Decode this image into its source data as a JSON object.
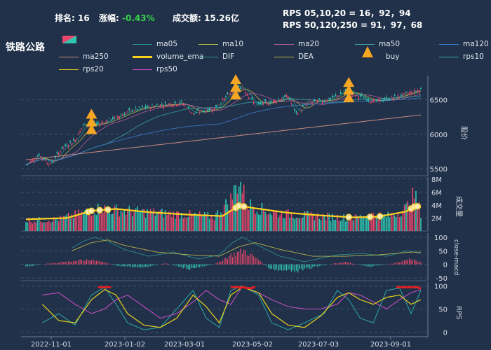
{
  "header": {
    "rank_label": "排名:",
    "rank_value": "16",
    "change_label": "涨幅:",
    "change_value": "-0.43%",
    "turnover_label": "成交额:",
    "turnover_value": "15.26亿",
    "rps_short": "RPS 05,10,20 = 16，92，94",
    "rps_long": "RPS 50,120,250 = 91，97，68"
  },
  "sector_name": "铁路公路",
  "legend": [
    {
      "label": "ma05",
      "color": "#2a8f8a"
    },
    {
      "label": "ma10",
      "color": "#b7b24a"
    },
    {
      "label": "ma20",
      "color": "#b05a9c"
    },
    {
      "label": "ma50",
      "color": "#3aa0a0"
    },
    {
      "label": "ma120",
      "color": "#3a7cc9"
    },
    {
      "label": "ma250",
      "color": "#c98a80"
    },
    {
      "label": "volume_ema",
      "color": "#ffd21f"
    },
    {
      "label": "DIF",
      "color": "#2a8f8a"
    },
    {
      "label": "DEA",
      "color": "#b7b24a"
    },
    {
      "label": "buy",
      "color": "#f5a623"
    },
    {
      "label": "rps10",
      "color": "#2aa8a8"
    },
    {
      "label": "rps20",
      "color": "#e8d21c"
    },
    {
      "label": "rps50",
      "color": "#d050c8"
    }
  ],
  "colors": {
    "up": "#e8476a",
    "down": "#2fc7b0",
    "bg": "#213149",
    "grid": "#4a5a70"
  },
  "chart_data": [
    {
      "type": "candlestick",
      "ylabel": "股价",
      "yticks": [
        5500,
        6000,
        6500
      ],
      "ylim": [
        5400,
        6850
      ],
      "series": [
        {
          "name": "ma05"
        },
        {
          "name": "ma10"
        },
        {
          "name": "ma20"
        },
        {
          "name": "ma50"
        },
        {
          "name": "ma120"
        },
        {
          "name": "ma250"
        }
      ],
      "close_keypoints": [
        [
          0,
          5560
        ],
        [
          8,
          5700
        ],
        [
          15,
          5560
        ],
        [
          22,
          5800
        ],
        [
          30,
          5920
        ],
        [
          35,
          6130
        ],
        [
          45,
          6150
        ],
        [
          55,
          6250
        ],
        [
          65,
          6350
        ],
        [
          80,
          6420
        ],
        [
          95,
          6460
        ],
        [
          102,
          6300
        ],
        [
          115,
          6380
        ],
        [
          125,
          6600
        ],
        [
          132,
          6700
        ],
        [
          140,
          6420
        ],
        [
          150,
          6470
        ],
        [
          160,
          6550
        ],
        [
          165,
          6300
        ],
        [
          172,
          6460
        ],
        [
          185,
          6500
        ],
        [
          195,
          6620
        ],
        [
          205,
          6540
        ],
        [
          213,
          6470
        ],
        [
          222,
          6520
        ],
        [
          232,
          6580
        ],
        [
          241,
          6650
        ]
      ],
      "buy_signals": [
        40,
        128,
        197
      ]
    },
    {
      "type": "bar",
      "ylabel": "成交量",
      "yticks": [
        "2M",
        "4M",
        "6M",
        "8M"
      ],
      "ytick_values": [
        2,
        4,
        6,
        8
      ],
      "ylim": [
        0,
        8.3
      ],
      "volume_keypoints": [
        [
          0,
          1.6
        ],
        [
          20,
          1.8
        ],
        [
          32,
          2.6
        ],
        [
          45,
          3.5
        ],
        [
          60,
          3.1
        ],
        [
          80,
          2.8
        ],
        [
          100,
          2.5
        ],
        [
          115,
          2.2
        ],
        [
          125,
          4.8
        ],
        [
          130,
          8.0
        ],
        [
          135,
          4.2
        ],
        [
          150,
          2.8
        ],
        [
          170,
          2.4
        ],
        [
          185,
          2.2
        ],
        [
          200,
          2.0
        ],
        [
          210,
          2.5
        ],
        [
          222,
          2.3
        ],
        [
          232,
          3.5
        ],
        [
          237,
          5.6
        ],
        [
          241,
          2.8
        ]
      ],
      "ema_keypoints": [
        [
          0,
          1.8
        ],
        [
          25,
          2.0
        ],
        [
          40,
          3.1
        ],
        [
          55,
          3.4
        ],
        [
          75,
          2.9
        ],
        [
          100,
          2.5
        ],
        [
          120,
          2.3
        ],
        [
          130,
          3.9
        ],
        [
          140,
          3.5
        ],
        [
          160,
          2.8
        ],
        [
          180,
          2.4
        ],
        [
          200,
          2.1
        ],
        [
          215,
          2.2
        ],
        [
          232,
          3.0
        ],
        [
          238,
          3.9
        ],
        [
          241,
          3.6
        ]
      ]
    },
    {
      "type": "bar",
      "ylabel": "close-macd",
      "yticks": [
        -50,
        0,
        50,
        100
      ],
      "ylim": [
        -60,
        115
      ]
    },
    {
      "type": "line",
      "ylabel": "RPS",
      "yticks": [
        0,
        50,
        100
      ],
      "ylim": [
        -10,
        108
      ],
      "series": [
        {
          "name": "rps10"
        },
        {
          "name": "rps20"
        },
        {
          "name": "rps50"
        }
      ]
    }
  ],
  "x_ticks": [
    "2022-11-01",
    "2023-01-02",
    "2023-03-01",
    "2023-05-02",
    "2023-07-03",
    "2023-09-01"
  ]
}
